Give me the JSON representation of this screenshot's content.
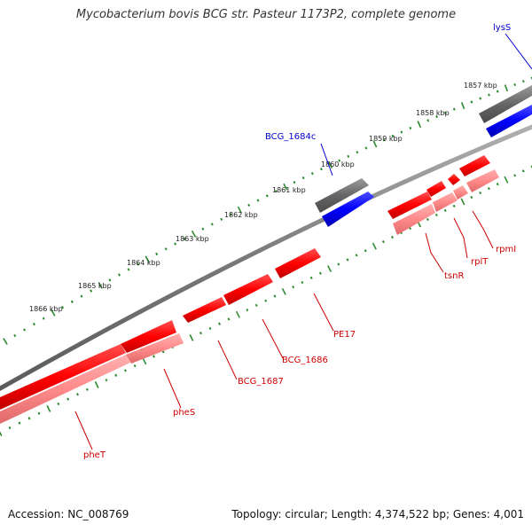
{
  "title": "Mycobacterium bovis BCG str. Pasteur 1173P2, complete genome",
  "footer": {
    "accession": "Accession: NC_008769",
    "topology": "Topology: circular; Length: 4,374,522 bp; Genes: 4,001"
  },
  "scale_labels": [
    "1857 kbp",
    "1858 kbp",
    "1859 kbp",
    "1860 kbp",
    "1861 kbp",
    "1862 kbp",
    "1863 kbp",
    "1864 kbp",
    "1865 kbp",
    "1866 kbp"
  ],
  "gene_labels": {
    "lysS": "lysS",
    "BCG_1684c": "BCG_1684c",
    "rpmI": "rpmI",
    "rplT": "rplT",
    "tsnR": "tsnR",
    "PE17": "PE17",
    "BCG_1686": "BCG_1686",
    "BCG_1687": "BCG_1687",
    "pheS": "pheS",
    "pheT": "pheT"
  },
  "colors": {
    "background": "#ffffff",
    "backbone": "#808080",
    "forward_cds": "#666666",
    "forward_gene": "#0000ff",
    "reverse_cds": "#ff0000",
    "reverse_gene": "#ff8080",
    "ticks": "#2e8b2e",
    "forward_label": "#0000cc",
    "reverse_label": "#cc0000"
  }
}
